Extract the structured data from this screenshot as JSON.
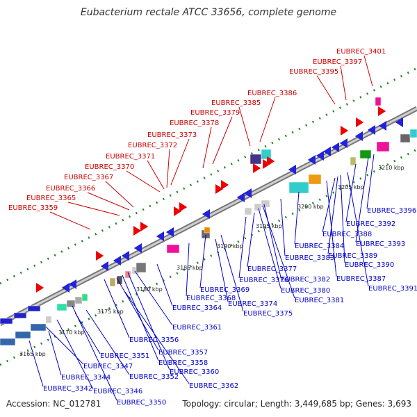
{
  "title": "Eubacterium rectale ATCC 33656, complete genome",
  "accession": "Accession: NC_012781",
  "summary": "Topology: circular; Length: 3,449,685 bp; Genes: 3,693",
  "colors": {
    "forward_label": "#cc0000",
    "reverse_label": "#0000cc",
    "backbone": "#888888",
    "dots": "#228822",
    "forward_gene": "#ee0000",
    "reverse_gene": "#0000ee"
  },
  "ticks": [
    "3165 kbp",
    "3170 kbp",
    "3175 kbp",
    "3180 kbp",
    "3185 kbp",
    "3190 kbp",
    "3195 kbp",
    "3200 kbp",
    "3205 kbp",
    "3210 kbp"
  ],
  "forward_labels": [
    "EUBREC_3359",
    "EUBREC_3365",
    "EUBREC_3366",
    "EUBREC_3367",
    "EUBREC_3370",
    "EUBREC_3371",
    "EUBREC_3372",
    "EUBREC_3373",
    "EUBREC_3378",
    "EUBREC_3379",
    "EUBREC_3385",
    "EUBREC_3386",
    "EUBREC_3395",
    "EUBREC_3397",
    "EUBREC_3401"
  ],
  "reverse_labels": [
    "EUBREC_3342",
    "EUBREC_3344",
    "EUBREC_3346",
    "EUBREC_3347",
    "EUBREC_3350",
    "EUBREC_3351",
    "EUBREC_3352",
    "EUBREC_3356",
    "EUBREC_3357",
    "EUBREC_3358",
    "EUBREC_3360",
    "EUBREC_3361",
    "EUBREC_3362",
    "EUBREC_3364",
    "EUBREC_3368",
    "EUBREC_3369",
    "EUBREC_3374",
    "EUBREC_3375",
    "EUBREC_3376",
    "EUBREC_3377",
    "EUBREC_3380",
    "EUBREC_3381",
    "EUBREC_3382",
    "EUBREC_3383",
    "EUBREC_3384",
    "EUBREC_3387",
    "EUBREC_3388",
    "EUBREC_3389",
    "EUBREC_3390",
    "EUBREC_3391",
    "EUBREC_3392",
    "EUBREC_3393",
    "EUBREC_3396"
  ]
}
